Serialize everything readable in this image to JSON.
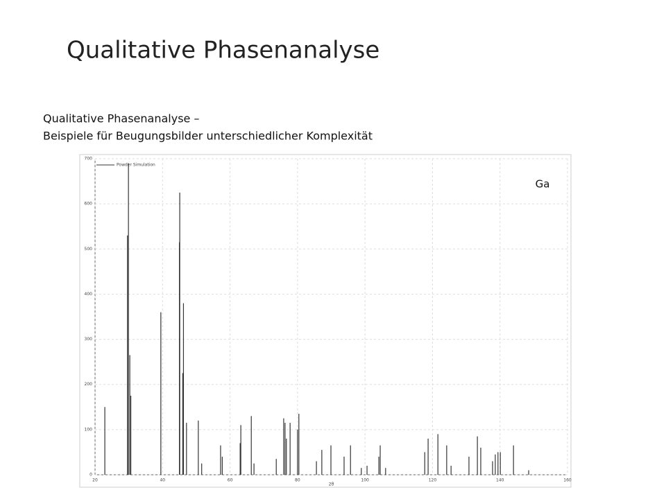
{
  "slide": {
    "title": "Qualitative Phasenanalyse",
    "text": [
      "Qualitative Phasenanalyse –",
      "Beispiele für Beugungsbilder unterschiedlicher Komplexität"
    ]
  },
  "chart_data": {
    "type": "stem",
    "xlabel": "2θ",
    "annotation": "Ga",
    "grid": true,
    "xlim": [
      20,
      160
    ],
    "xticks": [
      20,
      40,
      60,
      80,
      100,
      120,
      140,
      160
    ],
    "ylim": [
      0,
      700
    ],
    "yticks": [
      0,
      100,
      200,
      300,
      400,
      500,
      600,
      700
    ],
    "series": [
      {
        "name": "Powder Simulation",
        "color": "#333333",
        "x": [
          22.9,
          29.6,
          29.9,
          30.3,
          30.6,
          39.5,
          45.0,
          45.1,
          46.0,
          46.2,
          47.1,
          50.6,
          51.6,
          57.2,
          57.7,
          63.0,
          63.2,
          66.3,
          67.1,
          73.7,
          75.9,
          76.3,
          76.7,
          77.8,
          80.0,
          80.4,
          85.6,
          87.2,
          89.9,
          93.8,
          95.7,
          98.9,
          100.6,
          104.1,
          104.5,
          106.1,
          117.7,
          118.7,
          121.6,
          124.2,
          125.5,
          130.8,
          133.3,
          134.3,
          137.8,
          138.6,
          139.4,
          140.1,
          144.0,
          148.5
        ],
        "values": [
          150,
          530,
          690,
          265,
          175,
          360,
          515,
          625,
          225,
          380,
          115,
          120,
          25,
          65,
          40,
          70,
          110,
          130,
          25,
          35,
          125,
          115,
          80,
          115,
          100,
          135,
          30,
          55,
          65,
          40,
          65,
          15,
          20,
          40,
          65,
          15,
          50,
          80,
          90,
          65,
          20,
          40,
          85,
          60,
          30,
          45,
          50,
          50,
          65,
          10
        ]
      }
    ]
  }
}
